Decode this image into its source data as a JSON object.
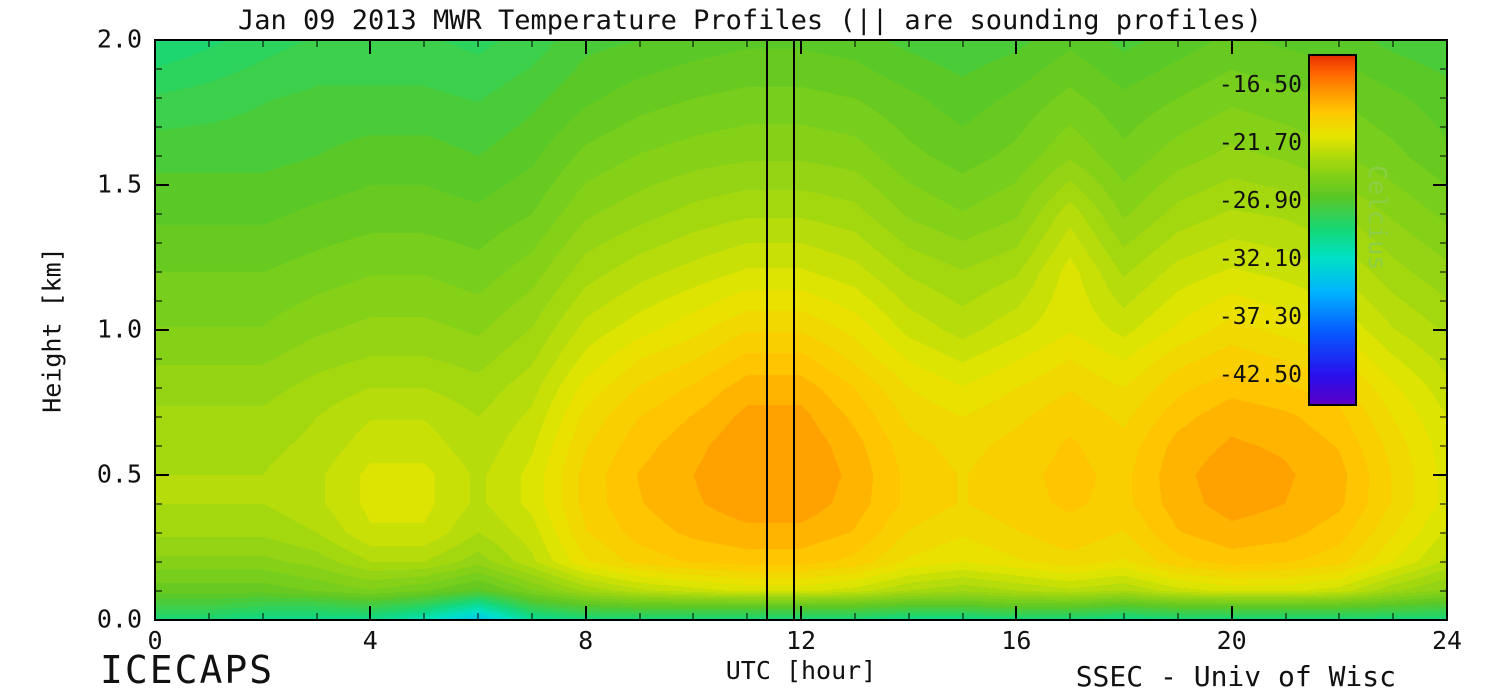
{
  "title": "Jan 09 2013 MWR Temperature Profiles (|| are sounding profiles)",
  "footer": {
    "project": "ICECAPS",
    "credit": "SSEC - Univ of Wisc"
  },
  "chart_data": {
    "type": "heatmap",
    "title": "Jan 09 2013 MWR Temperature Profiles (|| are sounding profiles)",
    "xlabel": "UTC [hour]",
    "ylabel": "Height [km]",
    "xlim": [
      0,
      24
    ],
    "ylim": [
      0.0,
      2.0
    ],
    "x_major_ticks": [
      0,
      4,
      8,
      12,
      16,
      20,
      24
    ],
    "x_minor_step": 1,
    "y_major_ticks": [
      0.0,
      0.5,
      1.0,
      1.5,
      2.0
    ],
    "y_tick_labels": [
      "0.0",
      "0.5",
      "1.0",
      "1.5",
      "2.0"
    ],
    "y_minor_step": 0.1,
    "grid_on": false,
    "legend_position": "colorbar-right-inset",
    "sounding_hours": [
      11.35,
      11.85
    ],
    "colorbar": {
      "title": "Celcius",
      "title_color": "#8ccf45",
      "min": -45.1,
      "max": -13.9,
      "tick_values": [
        -16.5,
        -21.7,
        -26.9,
        -32.1,
        -37.3,
        -42.5
      ],
      "tick_labels": [
        "-16.50",
        "-21.70",
        "-26.90",
        "-32.10",
        "-37.30",
        "-42.50"
      ]
    },
    "colormap_stops": [
      [
        0.0,
        "#5a00c8"
      ],
      [
        0.08,
        "#2a10ee"
      ],
      [
        0.2,
        "#0857ff"
      ],
      [
        0.32,
        "#00b4ff"
      ],
      [
        0.42,
        "#00e2c8"
      ],
      [
        0.5,
        "#16d878"
      ],
      [
        0.6,
        "#5ec823"
      ],
      [
        0.7,
        "#a4d80f"
      ],
      [
        0.77,
        "#e6e600"
      ],
      [
        0.84,
        "#ffc800"
      ],
      [
        0.9,
        "#ff9600"
      ],
      [
        0.96,
        "#ff5f00"
      ],
      [
        1.0,
        "#e83200"
      ]
    ],
    "contour_step_c": 0.65,
    "grid": {
      "hours": [
        0,
        1,
        2,
        3,
        4,
        5,
        6,
        7,
        8,
        9,
        10,
        11,
        12,
        13,
        14,
        15,
        16,
        17,
        18,
        19,
        20,
        21,
        22,
        23,
        24
      ],
      "heights_km": [
        0.0,
        0.05,
        0.1,
        0.2,
        0.3,
        0.4,
        0.5,
        0.6,
        0.7,
        0.8,
        0.9,
        1.0,
        1.2,
        1.4,
        1.6,
        1.8,
        2.0
      ],
      "temperature_c": [
        [
          -29.5,
          -29.5,
          -30.0,
          -30.0,
          -30.0,
          -31.5,
          -34.0,
          -30.5,
          -29.5,
          -29.5,
          -29.5,
          -29.5,
          -29.5,
          -29.5,
          -30.0,
          -30.0,
          -29.5,
          -29.5,
          -30.0,
          -29.5,
          -29.5,
          -29.5,
          -29.5,
          -29.5,
          -29.5
        ],
        [
          -27.5,
          -27.5,
          -28.0,
          -28.0,
          -27.5,
          -28.5,
          -30.5,
          -27.5,
          -26.5,
          -26.0,
          -26.0,
          -26.0,
          -26.0,
          -26.0,
          -26.5,
          -26.5,
          -26.0,
          -26.0,
          -26.5,
          -26.0,
          -26.0,
          -26.0,
          -26.0,
          -26.5,
          -27.0
        ],
        [
          -26.0,
          -26.0,
          -26.0,
          -25.5,
          -25.0,
          -25.5,
          -26.5,
          -25.0,
          -23.5,
          -22.5,
          -22.0,
          -21.5,
          -21.5,
          -22.0,
          -23.0,
          -23.5,
          -23.0,
          -22.5,
          -23.0,
          -22.0,
          -21.5,
          -21.5,
          -22.0,
          -23.5,
          -24.5
        ],
        [
          -24.5,
          -24.5,
          -24.5,
          -24.0,
          -23.0,
          -23.0,
          -24.0,
          -22.5,
          -20.5,
          -19.5,
          -19.0,
          -18.8,
          -18.8,
          -19.3,
          -20.5,
          -21.0,
          -20.5,
          -20.0,
          -20.5,
          -19.3,
          -18.8,
          -19.0,
          -19.5,
          -21.0,
          -22.5
        ],
        [
          -23.5,
          -23.5,
          -23.5,
          -23.0,
          -21.8,
          -21.8,
          -23.0,
          -22.0,
          -19.8,
          -18.8,
          -18.3,
          -18.0,
          -18.0,
          -18.5,
          -19.8,
          -20.3,
          -19.8,
          -19.3,
          -19.8,
          -18.5,
          -18.0,
          -18.2,
          -18.8,
          -20.3,
          -21.8
        ],
        [
          -23.0,
          -23.0,
          -23.0,
          -22.5,
          -21.5,
          -21.5,
          -22.5,
          -21.5,
          -19.5,
          -18.5,
          -17.9,
          -17.4,
          -17.4,
          -18.1,
          -19.3,
          -19.8,
          -19.3,
          -19.0,
          -19.3,
          -18.1,
          -17.5,
          -17.8,
          -18.3,
          -19.8,
          -21.3
        ],
        [
          -23.0,
          -23.0,
          -23.0,
          -22.5,
          -21.5,
          -21.5,
          -22.5,
          -21.5,
          -19.5,
          -18.4,
          -17.8,
          -17.2,
          -17.2,
          -18.0,
          -19.3,
          -19.8,
          -19.3,
          -18.9,
          -19.3,
          -18.0,
          -17.4,
          -17.7,
          -18.2,
          -19.8,
          -21.3
        ],
        [
          -23.2,
          -23.2,
          -23.2,
          -22.8,
          -22.0,
          -22.0,
          -22.8,
          -21.8,
          -19.8,
          -18.7,
          -18.0,
          -17.3,
          -17.3,
          -18.2,
          -19.5,
          -20.0,
          -19.5,
          -19.0,
          -19.5,
          -18.2,
          -17.7,
          -17.9,
          -18.5,
          -20.0,
          -21.4
        ],
        [
          -23.5,
          -23.5,
          -23.5,
          -23.0,
          -22.4,
          -22.4,
          -23.0,
          -22.2,
          -20.2,
          -19.1,
          -18.4,
          -17.6,
          -17.6,
          -18.6,
          -19.9,
          -20.4,
          -19.9,
          -19.3,
          -19.9,
          -18.7,
          -18.0,
          -18.3,
          -18.9,
          -20.4,
          -21.7
        ],
        [
          -23.9,
          -23.9,
          -23.9,
          -23.4,
          -23.0,
          -23.0,
          -23.4,
          -22.6,
          -20.8,
          -19.7,
          -19.0,
          -18.1,
          -18.1,
          -19.1,
          -20.4,
          -21.0,
          -20.4,
          -19.8,
          -20.4,
          -19.3,
          -18.7,
          -19.0,
          -19.5,
          -20.9,
          -22.1
        ],
        [
          -24.4,
          -24.4,
          -24.4,
          -23.9,
          -23.6,
          -23.6,
          -23.9,
          -23.1,
          -21.5,
          -20.4,
          -19.8,
          -18.9,
          -18.9,
          -19.9,
          -21.1,
          -21.8,
          -21.1,
          -20.4,
          -21.1,
          -20.0,
          -19.4,
          -19.8,
          -20.3,
          -21.6,
          -22.6
        ],
        [
          -24.9,
          -24.9,
          -24.9,
          -24.4,
          -24.1,
          -24.1,
          -24.4,
          -23.6,
          -22.1,
          -21.3,
          -20.6,
          -19.8,
          -19.8,
          -20.6,
          -21.9,
          -22.6,
          -21.9,
          -21.1,
          -21.9,
          -20.9,
          -20.1,
          -20.6,
          -21.1,
          -22.3,
          -23.1
        ],
        [
          -25.6,
          -25.6,
          -25.6,
          -25.3,
          -25.0,
          -25.0,
          -25.3,
          -24.6,
          -23.3,
          -22.6,
          -22.1,
          -21.6,
          -21.6,
          -22.1,
          -23.1,
          -23.6,
          -23.1,
          -21.4,
          -23.1,
          -22.1,
          -21.6,
          -21.9,
          -22.4,
          -23.4,
          -24.1
        ],
        [
          -26.4,
          -26.4,
          -26.4,
          -26.1,
          -25.9,
          -25.9,
          -26.1,
          -25.6,
          -24.4,
          -23.9,
          -23.4,
          -23.1,
          -23.1,
          -23.4,
          -24.4,
          -24.9,
          -24.4,
          -22.6,
          -24.4,
          -23.4,
          -22.9,
          -23.1,
          -23.6,
          -24.4,
          -25.1
        ],
        [
          -27.1,
          -27.1,
          -27.1,
          -26.9,
          -26.6,
          -26.6,
          -26.9,
          -26.4,
          -25.4,
          -24.9,
          -24.6,
          -24.4,
          -24.4,
          -24.6,
          -25.4,
          -25.9,
          -25.4,
          -24.4,
          -25.4,
          -24.6,
          -24.1,
          -24.4,
          -24.9,
          -25.4,
          -26.1
        ],
        [
          -28.1,
          -27.9,
          -27.6,
          -27.4,
          -27.4,
          -27.4,
          -27.6,
          -27.1,
          -26.4,
          -25.9,
          -25.6,
          -25.4,
          -25.4,
          -25.6,
          -26.1,
          -26.6,
          -26.1,
          -25.4,
          -26.1,
          -25.6,
          -25.1,
          -25.4,
          -25.6,
          -26.1,
          -26.6
        ],
        [
          -29.5,
          -29.0,
          -28.5,
          -28.1,
          -28.1,
          -28.1,
          -28.4,
          -27.9,
          -27.1,
          -26.9,
          -26.6,
          -26.4,
          -26.4,
          -26.6,
          -27.1,
          -27.4,
          -27.1,
          -26.4,
          -27.1,
          -26.6,
          -26.1,
          -26.4,
          -26.6,
          -27.1,
          -27.4
        ]
      ]
    }
  }
}
